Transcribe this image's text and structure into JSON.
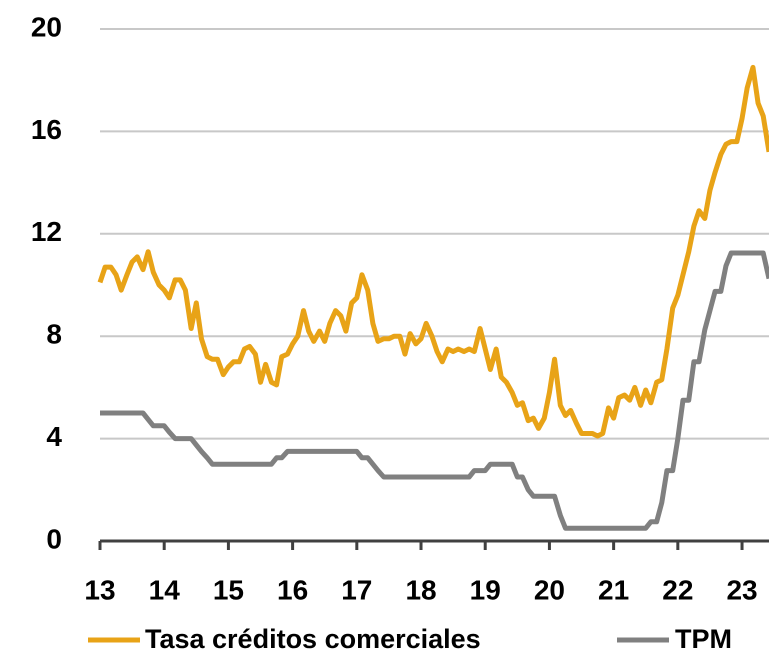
{
  "chart_data": {
    "type": "line",
    "x": [
      13,
      13.08,
      13.17,
      13.25,
      13.33,
      13.42,
      13.5,
      13.58,
      13.67,
      13.75,
      13.83,
      13.92,
      14,
      14.08,
      14.17,
      14.25,
      14.33,
      14.42,
      14.5,
      14.58,
      14.67,
      14.75,
      14.83,
      14.92,
      15,
      15.08,
      15.17,
      15.25,
      15.33,
      15.42,
      15.5,
      15.58,
      15.67,
      15.75,
      15.83,
      15.92,
      16,
      16.08,
      16.17,
      16.25,
      16.33,
      16.42,
      16.5,
      16.58,
      16.67,
      16.75,
      16.83,
      16.92,
      17,
      17.08,
      17.17,
      17.25,
      17.33,
      17.42,
      17.5,
      17.58,
      17.67,
      17.75,
      17.83,
      17.92,
      18,
      18.08,
      18.17,
      18.25,
      18.33,
      18.42,
      18.5,
      18.58,
      18.67,
      18.75,
      18.83,
      18.92,
      19,
      19.08,
      19.17,
      19.25,
      19.33,
      19.42,
      19.5,
      19.58,
      19.67,
      19.75,
      19.83,
      19.92,
      20,
      20.08,
      20.17,
      20.25,
      20.33,
      20.42,
      20.5,
      20.58,
      20.67,
      20.75,
      20.83,
      20.92,
      21,
      21.08,
      21.17,
      21.25,
      21.33,
      21.42,
      21.5,
      21.58,
      21.67,
      21.75,
      21.83,
      21.92,
      22,
      22.08,
      22.17,
      22.25,
      22.33,
      22.42,
      22.5,
      22.58,
      22.67,
      22.75,
      22.83,
      22.92,
      23,
      23.08,
      23.17,
      23.25,
      23.33,
      23.42
    ],
    "series": [
      {
        "name": "Tasa créditos comerciales",
        "color": "#e8a317",
        "values": [
          10.1,
          10.7,
          10.7,
          10.4,
          9.8,
          10.4,
          10.9,
          11.1,
          10.6,
          11.3,
          10.5,
          10.0,
          9.8,
          9.5,
          10.2,
          10.2,
          9.8,
          8.3,
          9.3,
          7.9,
          7.2,
          7.1,
          7.1,
          6.5,
          6.8,
          7.0,
          7.0,
          7.5,
          7.6,
          7.3,
          6.2,
          6.9,
          6.2,
          6.1,
          7.2,
          7.3,
          7.7,
          8.0,
          9.0,
          8.2,
          7.8,
          8.2,
          7.8,
          8.5,
          9.0,
          8.8,
          8.2,
          9.3,
          9.5,
          10.4,
          9.8,
          8.5,
          7.8,
          7.9,
          7.9,
          8.0,
          8.0,
          7.3,
          8.1,
          7.7,
          7.9,
          8.5,
          8.0,
          7.4,
          7.0,
          7.5,
          7.4,
          7.5,
          7.4,
          7.5,
          7.4,
          8.3,
          7.5,
          6.7,
          7.5,
          6.4,
          6.2,
          5.8,
          5.3,
          5.4,
          4.7,
          4.8,
          4.4,
          4.8,
          5.8,
          7.1,
          5.3,
          4.9,
          5.1,
          4.6,
          4.2,
          4.2,
          4.2,
          4.1,
          4.2,
          5.2,
          4.8,
          5.6,
          5.7,
          5.5,
          6.0,
          5.3,
          5.9,
          5.4,
          6.2,
          6.3,
          7.5,
          9.1,
          9.6,
          10.4,
          11.3,
          12.3,
          12.9,
          12.6,
          13.7,
          14.4,
          15.1,
          15.5,
          15.6,
          15.6,
          16.5,
          17.7,
          18.5,
          17.1,
          16.6,
          15.2
        ]
      },
      {
        "name": "TPM",
        "color": "#808080",
        "values": [
          5,
          5,
          5,
          5,
          5,
          5,
          5,
          5,
          5,
          4.75,
          4.5,
          4.5,
          4.5,
          4.25,
          4,
          4,
          4,
          4,
          3.75,
          3.5,
          3.25,
          3,
          3,
          3,
          3,
          3,
          3,
          3,
          3,
          3,
          3,
          3,
          3,
          3.25,
          3.25,
          3.5,
          3.5,
          3.5,
          3.5,
          3.5,
          3.5,
          3.5,
          3.5,
          3.5,
          3.5,
          3.5,
          3.5,
          3.5,
          3.5,
          3.25,
          3.25,
          3,
          2.75,
          2.5,
          2.5,
          2.5,
          2.5,
          2.5,
          2.5,
          2.5,
          2.5,
          2.5,
          2.5,
          2.5,
          2.5,
          2.5,
          2.5,
          2.5,
          2.5,
          2.5,
          2.75,
          2.75,
          2.75,
          3,
          3,
          3,
          3,
          3,
          2.5,
          2.5,
          2,
          1.75,
          1.75,
          1.75,
          1.75,
          1.75,
          1,
          0.5,
          0.5,
          0.5,
          0.5,
          0.5,
          0.5,
          0.5,
          0.5,
          0.5,
          0.5,
          0.5,
          0.5,
          0.5,
          0.5,
          0.5,
          0.5,
          0.75,
          0.75,
          1.5,
          2.75,
          2.75,
          4,
          5.5,
          5.5,
          7,
          7,
          8.25,
          9,
          9.75,
          9.75,
          10.75,
          11.25,
          11.25,
          11.25,
          11.25,
          11.25,
          11.25,
          11.25,
          10.25
        ]
      }
    ],
    "xlim": [
      13,
      23.42
    ],
    "xticks": [
      13,
      14,
      15,
      16,
      17,
      18,
      19,
      20,
      21,
      22,
      23
    ],
    "ylim": [
      0,
      20
    ],
    "yticks": [
      0,
      4,
      8,
      12,
      16,
      20
    ],
    "grid": true
  }
}
